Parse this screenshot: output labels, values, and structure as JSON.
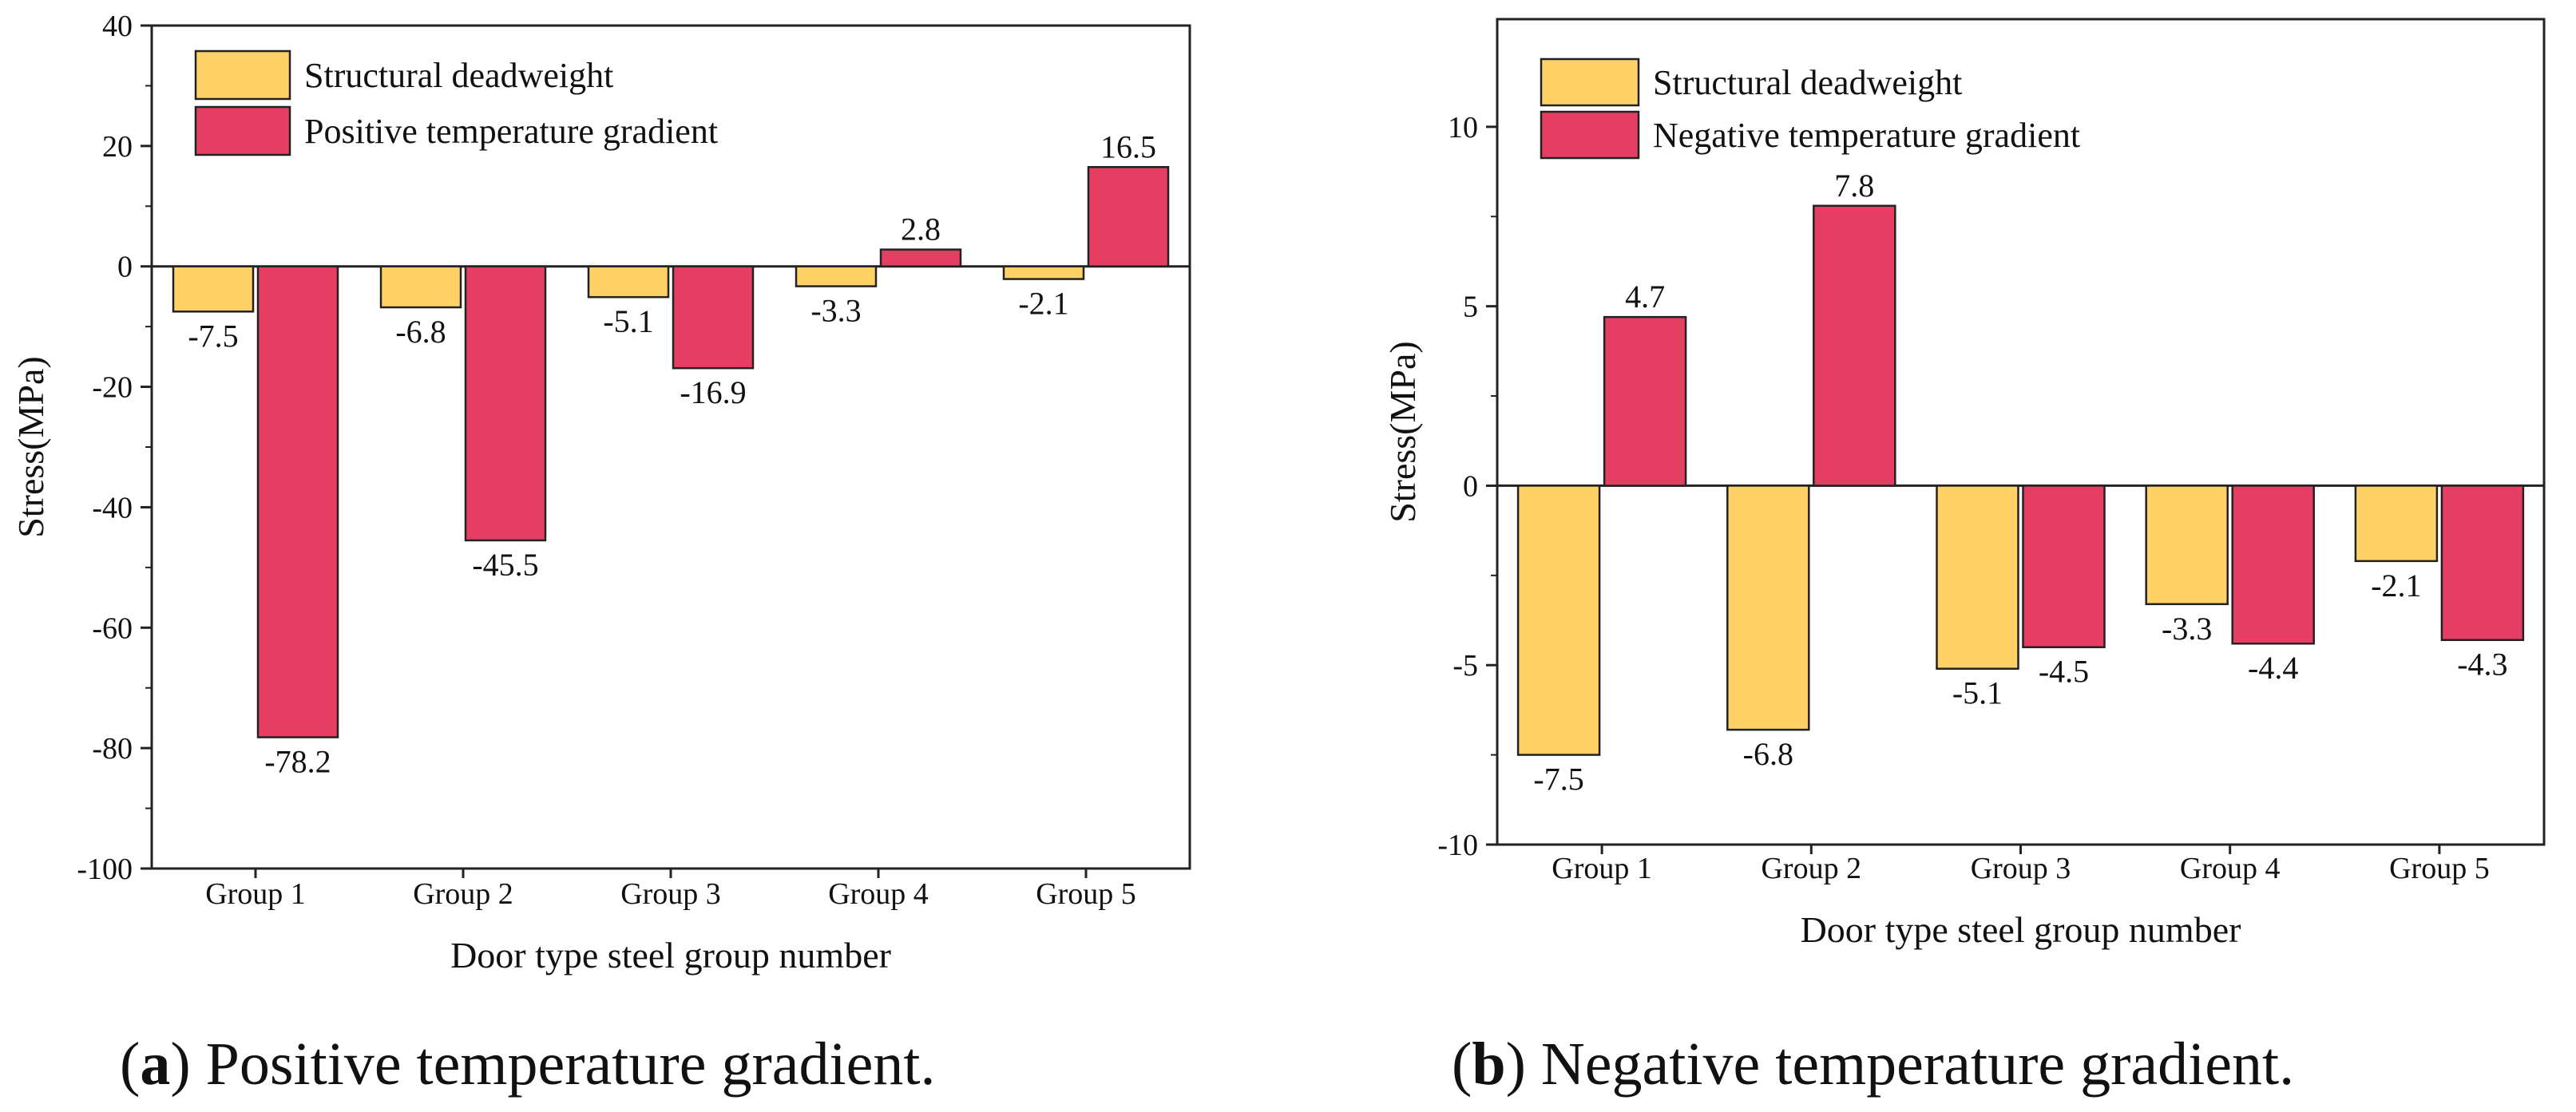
{
  "chart_data": [
    {
      "type": "bar",
      "panel": "a",
      "categories": [
        "Group 1",
        "Group 2",
        "Group 3",
        "Group 4",
        "Group 5"
      ],
      "series": [
        {
          "name": "Structural deadweight",
          "values": [
            -7.5,
            -6.8,
            -5.1,
            -3.3,
            -2.1
          ]
        },
        {
          "name": "Positive temperature gradient",
          "values": [
            -78.2,
            -45.5,
            -16.9,
            2.8,
            16.5
          ]
        }
      ],
      "colors": [
        "#FFD166",
        "#E63E62"
      ],
      "xlabel": "Door type steel group number",
      "ylabel": "Stress(MPa)",
      "ylim": [
        -100,
        40
      ],
      "yticks": [
        40,
        20,
        0,
        -20,
        -40,
        -60,
        -80,
        -100
      ],
      "legend_position": "top-left",
      "caption_letter": "a",
      "caption_text": " Positive temperature gradient."
    },
    {
      "type": "bar",
      "panel": "b",
      "categories": [
        "Group 1",
        "Group 2",
        "Group 3",
        "Group 4",
        "Group 5"
      ],
      "series": [
        {
          "name": "Structural deadweight",
          "values": [
            -7.5,
            -6.8,
            -5.1,
            -3.3,
            -2.1
          ]
        },
        {
          "name": "Negative temperature gradient",
          "values": [
            4.7,
            7.8,
            -4.5,
            -4.4,
            -4.3
          ]
        }
      ],
      "colors": [
        "#FFD166",
        "#E63E62"
      ],
      "xlabel": "Door type steel group number",
      "ylabel": "Stress(MPa)",
      "ylim": [
        -10,
        13
      ],
      "yticks": [
        10,
        5,
        0,
        -5,
        -10
      ],
      "legend_position": "top-left",
      "caption_letter": "b",
      "caption_text": " Negative temperature gradient."
    }
  ]
}
